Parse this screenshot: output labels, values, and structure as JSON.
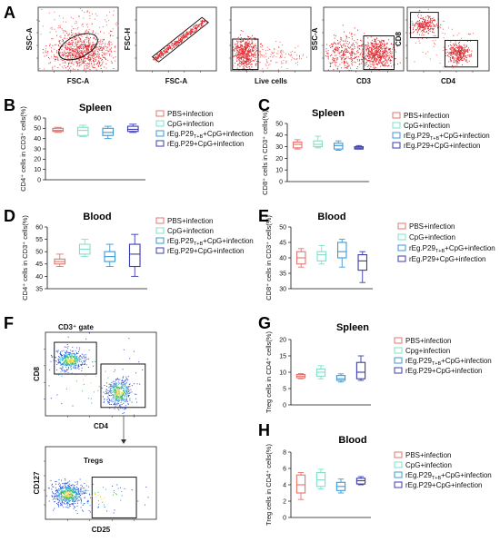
{
  "panels": {
    "A": "A",
    "B": "B",
    "C": "C",
    "D": "D",
    "E": "E",
    "F": "F",
    "G": "G",
    "H": "H"
  },
  "flow_A": [
    {
      "xlabel": "FSC-A",
      "ylabel": "SSC-A"
    },
    {
      "xlabel": "FSC-A",
      "ylabel": "FSC-H"
    },
    {
      "xlabel": "Live cells",
      "ylabel": ""
    },
    {
      "xlabel": "CD3",
      "ylabel": "SSC-A"
    },
    {
      "xlabel": "CD4",
      "ylabel": "CD8"
    }
  ],
  "flow_F": {
    "top": {
      "gate": "CD3⁺ gate",
      "xlabel": "CD4",
      "ylabel": "CD8"
    },
    "bottom": {
      "gate": "Tregs",
      "xlabel": "CD25",
      "ylabel": "CD127"
    }
  },
  "colors": {
    "PBS": "#e8736c",
    "CpG": "#7fe0c8",
    "rEgTB": "#3a9ad9",
    "rEgP29": "#3b3bb0"
  },
  "chart_data": [
    {
      "id": "B",
      "type": "boxplot",
      "title": "Spleen",
      "ylabel": "CD4⁺ cells in CD3⁺ cells(%)",
      "ylim": [
        0,
        60
      ],
      "yticks": [
        0,
        10,
        20,
        30,
        40,
        50,
        60
      ],
      "legend": [
        "PBS+infection",
        "CpG+infection",
        "rEg.P29T+B+CpG+infection",
        "rEg.P29+CpG+infection"
      ],
      "boxes": [
        {
          "min": 46,
          "q1": 47,
          "median": 48,
          "q3": 50,
          "max": 51
        },
        {
          "min": 42,
          "q1": 43,
          "median": 48,
          "q3": 51,
          "max": 53
        },
        {
          "min": 40,
          "q1": 43,
          "median": 46,
          "q3": 50,
          "max": 52
        },
        {
          "min": 46,
          "q1": 47,
          "median": 49,
          "q3": 52,
          "max": 54
        }
      ]
    },
    {
      "id": "C",
      "type": "boxplot",
      "title": "Spleen",
      "ylabel": "CD8⁺ cells in CD3⁺ cells(%)",
      "ylim": [
        0,
        50
      ],
      "yticks": [
        0,
        10,
        20,
        30,
        40,
        50
      ],
      "legend": [
        "PBS+infection",
        "CpG+infection",
        "rEg.P29T+B+CpG+infection",
        "rEg.P29+CpG+infection"
      ],
      "boxes": [
        {
          "min": 28,
          "q1": 29,
          "median": 32,
          "q3": 34,
          "max": 36
        },
        {
          "min": 29,
          "q1": 30,
          "median": 32,
          "q3": 35,
          "max": 39
        },
        {
          "min": 27,
          "q1": 28,
          "median": 31,
          "q3": 33,
          "max": 35
        },
        {
          "min": 28,
          "q1": 28,
          "median": 29,
          "q3": 30,
          "max": 31
        }
      ]
    },
    {
      "id": "D",
      "type": "boxplot",
      "title": "Blood",
      "ylabel": "CD4⁺ cells in CD3⁺ cells(%)",
      "ylim": [
        35,
        60
      ],
      "yticks": [
        35,
        40,
        45,
        50,
        55,
        60
      ],
      "legend": [
        "PBS+infection",
        "CpG+infection",
        "rEg.P29T+B+CpG+infection",
        "rEg.P29+CpG+infection"
      ],
      "boxes": [
        {
          "min": 44,
          "q1": 45,
          "median": 46,
          "q3": 47,
          "max": 49
        },
        {
          "min": 48,
          "q1": 49,
          "median": 51,
          "q3": 53,
          "max": 55
        },
        {
          "min": 44,
          "q1": 46,
          "median": 48,
          "q3": 50,
          "max": 53
        },
        {
          "min": 40,
          "q1": 44,
          "median": 49,
          "q3": 53,
          "max": 57
        }
      ]
    },
    {
      "id": "E",
      "type": "boxplot",
      "title": "Blood",
      "ylabel": "CD8⁺ cells in CD3⁺ cells(%)",
      "ylim": [
        30,
        50
      ],
      "yticks": [
        30,
        35,
        40,
        45,
        50
      ],
      "legend": [
        "PBS+infection",
        "CpG+infection",
        "rEg.P29T+B+CpG+infection",
        "rEg.P29+CpG+infection"
      ],
      "boxes": [
        {
          "min": 37,
          "q1": 38,
          "median": 40,
          "q3": 42,
          "max": 43
        },
        {
          "min": 38,
          "q1": 39,
          "median": 41,
          "q3": 42,
          "max": 44
        },
        {
          "min": 37,
          "q1": 40,
          "median": 42,
          "q3": 45,
          "max": 46
        },
        {
          "min": 32,
          "q1": 36,
          "median": 39,
          "q3": 41,
          "max": 42
        }
      ]
    },
    {
      "id": "G",
      "type": "boxplot",
      "title": "Spleen",
      "ylabel": "Treg cells in CD4⁺ cells(%)",
      "ylim": [
        0,
        20
      ],
      "yticks": [
        0,
        5,
        10,
        15,
        20
      ],
      "legend": [
        "PBS+infection",
        "Cpg+infection",
        "rEg.P29T+B+CpG+infection",
        "rEg.P29+CpG+infection"
      ],
      "boxes": [
        {
          "min": 8,
          "q1": 8.3,
          "median": 8.8,
          "q3": 9.3,
          "max": 9.6
        },
        {
          "min": 8,
          "q1": 8.8,
          "median": 10,
          "q3": 11,
          "max": 12
        },
        {
          "min": 7,
          "q1": 7.5,
          "median": 8,
          "q3": 9,
          "max": 9.5
        },
        {
          "min": 7.5,
          "q1": 8,
          "median": 10,
          "q3": 13,
          "max": 15
        }
      ]
    },
    {
      "id": "H",
      "type": "boxplot",
      "title": "Blood",
      "ylabel": "Treg cells in CD4⁺ cells(%)",
      "ylim": [
        0,
        8
      ],
      "yticks": [
        0,
        2,
        4,
        6,
        8
      ],
      "legend": [
        "PBS+infection",
        "CpG+infection",
        "rEg.P29T+B+CpG+infection",
        "rEg.P29+CpG+infection"
      ],
      "boxes": [
        {
          "min": 2.2,
          "q1": 3,
          "median": 4,
          "q3": 5.2,
          "max": 5.5
        },
        {
          "min": 3.5,
          "q1": 3.8,
          "median": 4.6,
          "q3": 5.5,
          "max": 5.9
        },
        {
          "min": 3,
          "q1": 3.3,
          "median": 3.8,
          "q3": 4.3,
          "max": 4.7
        },
        {
          "min": 4,
          "q1": 4.1,
          "median": 4.5,
          "q3": 4.8,
          "max": 5.0
        }
      ]
    }
  ]
}
